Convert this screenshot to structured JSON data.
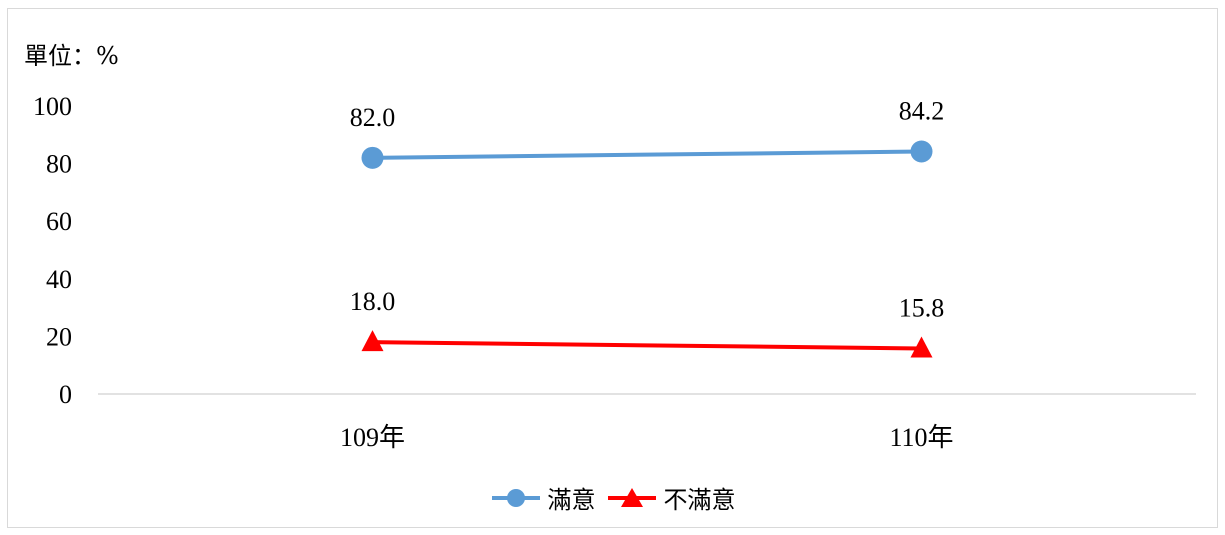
{
  "unit_label": "單位：%",
  "chart_data": {
    "type": "line",
    "categories": [
      "109年",
      "110年"
    ],
    "series": [
      {
        "name": "滿意",
        "values": [
          82.0,
          84.2
        ],
        "labels": [
          "82.0",
          "84.2"
        ],
        "color": "#5b9bd5",
        "marker": "circle"
      },
      {
        "name": "不滿意",
        "values": [
          18.0,
          15.8
        ],
        "labels": [
          "18.0",
          "15.8"
        ],
        "color": "#ff0000",
        "marker": "triangle"
      }
    ],
    "ylim": [
      0,
      100
    ],
    "yticks": [
      0,
      20,
      40,
      60,
      80,
      100
    ],
    "grid": false,
    "legend_position": "bottom"
  }
}
